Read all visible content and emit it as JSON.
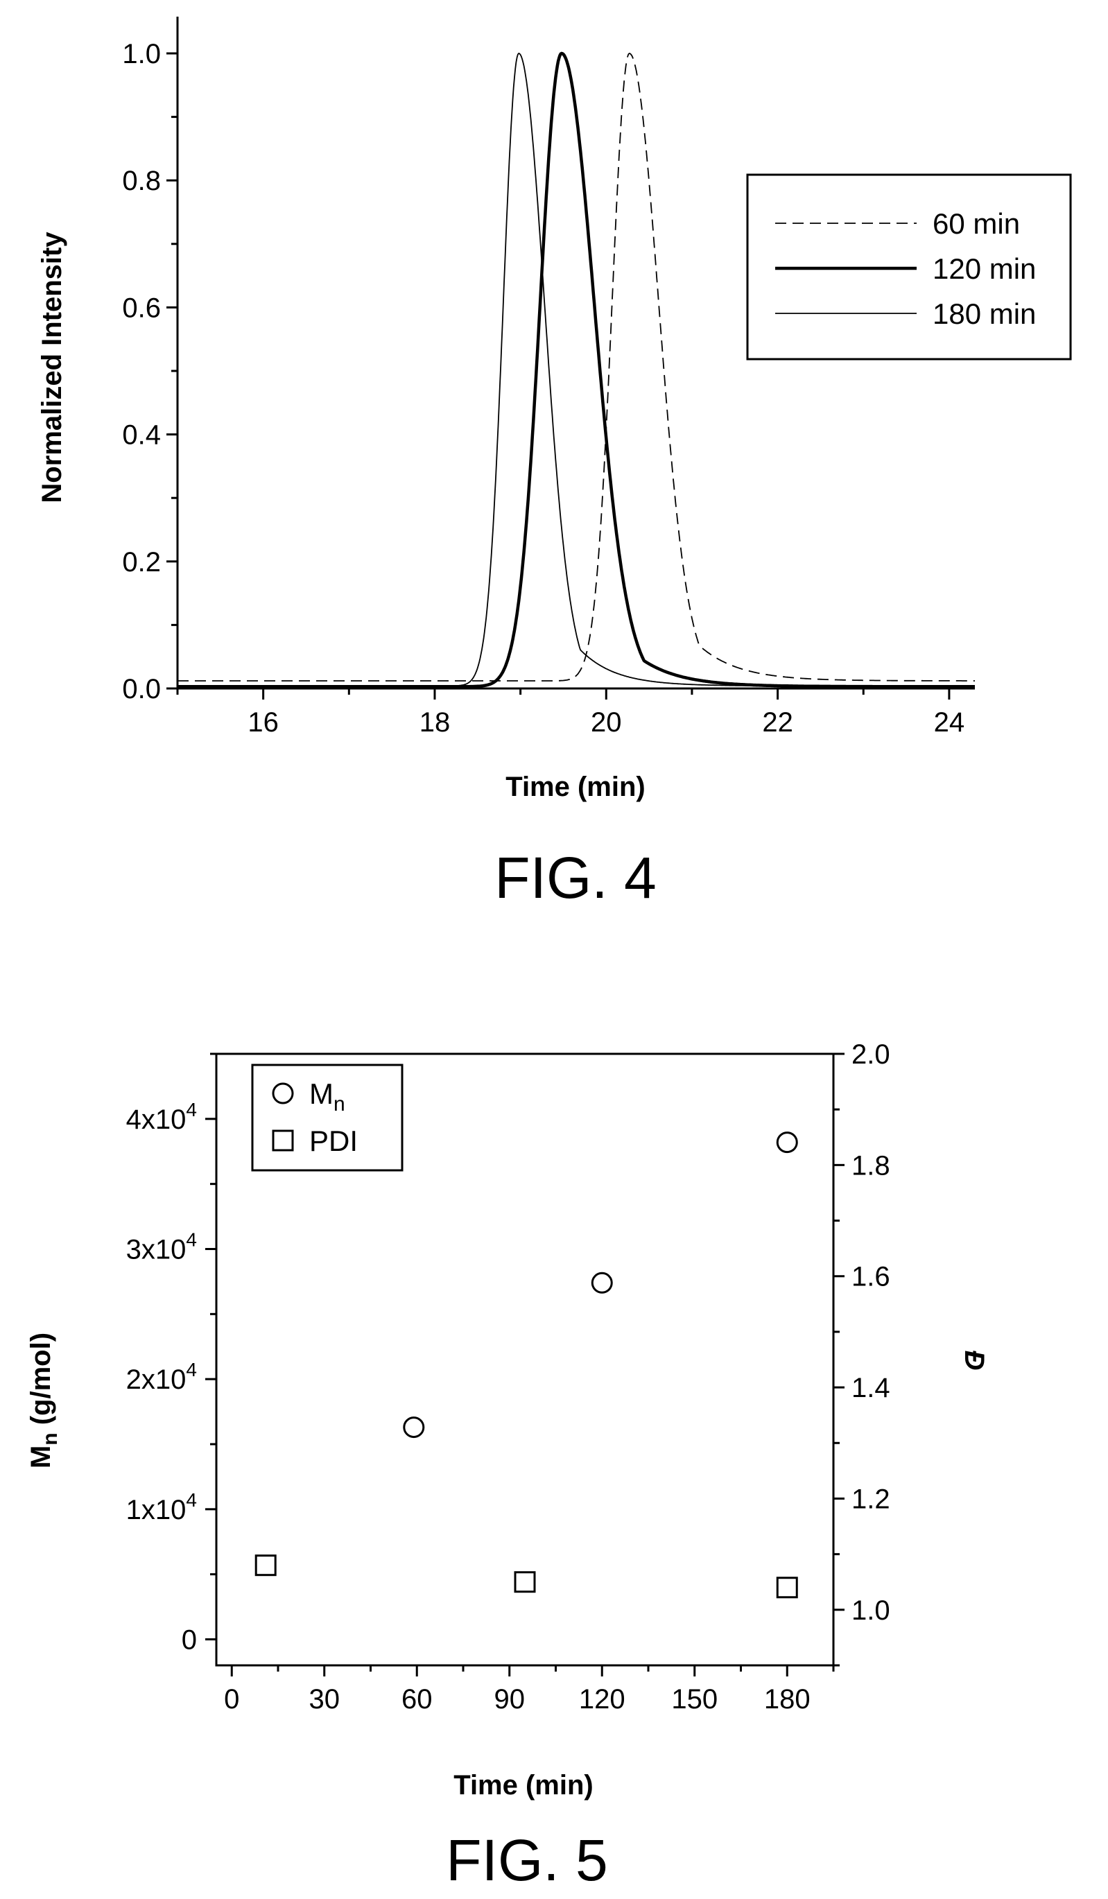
{
  "figures": {
    "fig4_label": "FIG. 4",
    "fig5_label": "FIG. 5"
  },
  "chart_data": [
    {
      "type": "line",
      "xlabel": "Time (min)",
      "ylabel": "Normalized Intensity",
      "xlim": [
        15.0,
        24.3
      ],
      "ylim": [
        0.0,
        1.0
      ],
      "xticks": [
        16,
        18,
        20,
        22,
        24
      ],
      "xtick_labels": [
        "16",
        "18",
        "20",
        "22",
        "24"
      ],
      "yticks": [
        0.0,
        0.2,
        0.4,
        0.6,
        0.8,
        1.0
      ],
      "ytick_labels": [
        "0.0",
        "0.2",
        "0.4",
        "0.6",
        "0.8",
        "1.0"
      ],
      "legend_position": "upper-right",
      "grid": false,
      "series": [
        {
          "name": "60 min",
          "style": "dashed",
          "weight": "thin",
          "peak": 20.27,
          "sigma_left": 0.2,
          "sigma_right": 0.34,
          "baseline": 0.012,
          "tail_decay": 0.45
        },
        {
          "name": "120 min",
          "style": "solid",
          "weight": "thick",
          "peak": 19.48,
          "sigma_left": 0.25,
          "sigma_right": 0.38,
          "baseline": 0.003,
          "tail_decay": 0.45
        },
        {
          "name": "180 min",
          "style": "solid",
          "weight": "thin",
          "peak": 18.98,
          "sigma_left": 0.18,
          "sigma_right": 0.3,
          "baseline": 0.004,
          "tail_decay": 0.4
        }
      ]
    },
    {
      "type": "scatter",
      "xlabel": "Time (min)",
      "ylabel_main": "M",
      "ylabel_sub": "n",
      "ylabel_rest": " (g/mol)",
      "y2label": "Đ",
      "xlim": [
        -5,
        195
      ],
      "ylim": [
        -2000,
        45000
      ],
      "y2lim": [
        0.9,
        2.0
      ],
      "xticks": [
        0,
        30,
        60,
        90,
        120,
        150,
        180
      ],
      "xtick_labels": [
        "0",
        "30",
        "60",
        "90",
        "120",
        "150",
        "180"
      ],
      "yticks": [
        0,
        10000,
        20000,
        30000,
        40000
      ],
      "ytick_labels": [
        {
          "base": "0",
          "exp": ""
        },
        {
          "base": "1x10",
          "exp": "4"
        },
        {
          "base": "2x10",
          "exp": "4"
        },
        {
          "base": "3x10",
          "exp": "4"
        },
        {
          "base": "4x10",
          "exp": "4"
        }
      ],
      "y2ticks": [
        1.0,
        1.2,
        1.4,
        1.6,
        1.8,
        2.0
      ],
      "y2tick_labels": [
        "1.0",
        "1.2",
        "1.4",
        "1.6",
        "1.8",
        "2.0"
      ],
      "legend_position": "upper-left",
      "grid": false,
      "legend": [
        {
          "marker": "circle",
          "main": "M",
          "sub": "n"
        },
        {
          "marker": "square",
          "main": "PDI",
          "sub": ""
        }
      ],
      "series": [
        {
          "name": "Mn",
          "marker": "circle",
          "axis": "left",
          "x": [
            59,
            120,
            180
          ],
          "y": [
            16300,
            27400,
            38200
          ]
        },
        {
          "name": "PDI",
          "marker": "square",
          "axis": "right",
          "x": [
            11,
            95,
            180
          ],
          "y": [
            1.08,
            1.05,
            1.04
          ]
        }
      ]
    }
  ]
}
